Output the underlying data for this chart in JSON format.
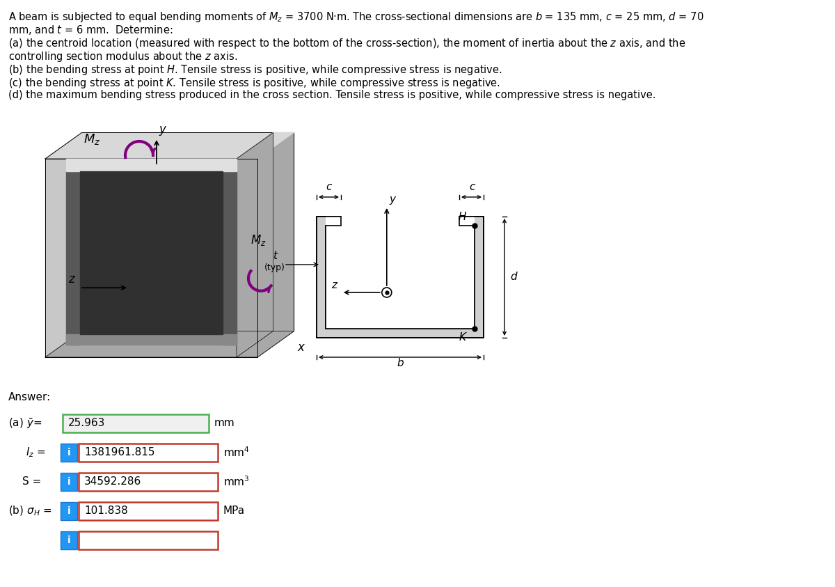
{
  "bg_color": "#ffffff",
  "text_color": "#000000",
  "font_size_main": 10.5,
  "text_lines": [
    "A beam is subjected to equal bending moments of $M_z$ = 3700 N·m. The cross-sectional dimensions are $b$ = 135 mm, $c$ = 25 mm, $d$ = 70",
    "mm, and $t$ = 6 mm.  Determine:",
    "(a) the centroid location (measured with respect to the bottom of the cross-section), the moment of inertia about the $z$ axis, and the",
    "controlling section modulus about the $z$ axis.",
    "(b) the bending stress at point $H$. Tensile stress is positive, while compressive stress is negative.",
    "(c) the bending stress at point $K$. Tensile stress is positive, while compressive stress is negative.",
    "(d) the maximum bending stress produced in the cross section. Tensile stress is positive, while compressive stress is negative."
  ],
  "answer_label": "Answer:",
  "ybar_value": "25.963",
  "ybar_unit": "mm",
  "Iz_value": "1381961.815",
  "Iz_unit": "mm$^4$",
  "S_value": "34592.286",
  "S_unit": "mm$^3$",
  "sigH_value": "101.838",
  "sigH_unit": "MPa",
  "box_fill_green": "#f0f0f0",
  "box_border_green": "#4caf50",
  "box_fill_red": "#ffffff",
  "box_border_red": "#c0392b",
  "btn_blue": "#2196f3",
  "btn_blue_dark": "#1976d2"
}
